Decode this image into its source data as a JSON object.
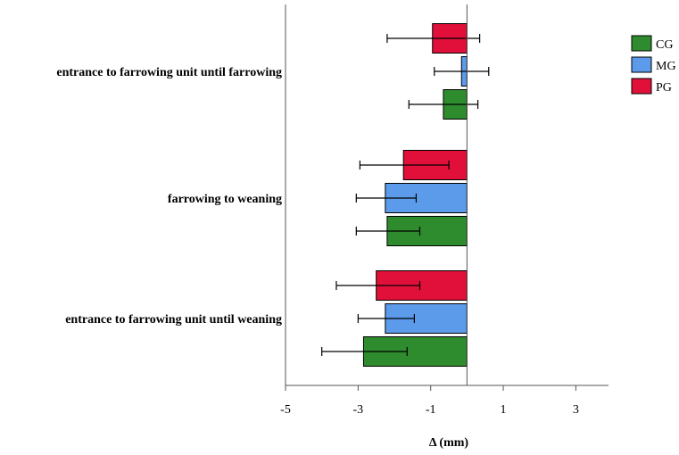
{
  "chart_data": {
    "type": "bar",
    "orientation": "horizontal",
    "title": "",
    "xlabel": "Δ (mm)",
    "ylabel": "",
    "xlim": [
      -5,
      3.9
    ],
    "xticks": [
      "-5",
      "-3",
      "-1",
      "1",
      "3"
    ],
    "categories": [
      "entrance to farrowing unit until farrowing",
      "farrowing to weaning",
      "entrance to farrowing unit until weaning"
    ],
    "series": [
      {
        "name": "CG",
        "color": "#2e8b2e",
        "values": [
          -0.65,
          -2.2,
          -2.85
        ],
        "err_low": [
          -1.6,
          -3.05,
          -4.0
        ],
        "err_high": [
          0.3,
          -1.3,
          -1.65
        ]
      },
      {
        "name": "MG",
        "color": "#5b9bea",
        "values": [
          -0.15,
          -2.25,
          -2.25
        ],
        "err_low": [
          -0.9,
          -3.05,
          -3.0
        ],
        "err_high": [
          0.6,
          -1.4,
          -1.45
        ]
      },
      {
        "name": "PG",
        "color": "#e0103a",
        "values": [
          -0.95,
          -1.75,
          -2.5
        ],
        "err_low": [
          -2.2,
          -2.95,
          -3.6
        ],
        "err_high": [
          0.35,
          -0.5,
          -1.3
        ]
      }
    ],
    "legend": {
      "position": "top-right",
      "order": [
        "CG",
        "MG",
        "PG"
      ]
    },
    "reference_line": 0,
    "grid": false
  }
}
